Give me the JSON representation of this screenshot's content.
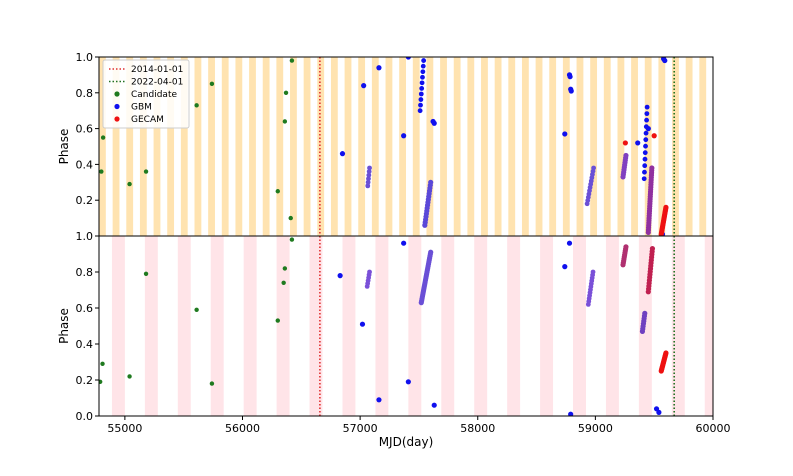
{
  "chart_data": {
    "type": "scatter",
    "xlabel": "MJD(day)",
    "xlim": [
      54780,
      60000
    ],
    "xticks": [
      55000,
      56000,
      57000,
      58000,
      59000,
      60000
    ],
    "xtick_labels": [
      "55000",
      "56000",
      "57000",
      "58000",
      "59000",
      "60000"
    ],
    "colors": {
      "candidate": "#1f7a1f",
      "gbm": "#1010ee",
      "gecam": "#ee1111",
      "mixed": "#7a3ed0",
      "band_top": "#ffe3b0",
      "band_bottom": "#ffe4e8",
      "vline1": "#e03030",
      "vline2": "#207020"
    },
    "legend": [
      {
        "label": "2014-01-01",
        "kind": "vline",
        "color": "#e03030"
      },
      {
        "label": "2022-04-01",
        "kind": "vline",
        "color": "#207020"
      },
      {
        "label": "Candidate",
        "kind": "point",
        "color": "#1f7a1f"
      },
      {
        "label": "GBM",
        "kind": "point",
        "color": "#1010ee"
      },
      {
        "label": "GECAM",
        "kind": "point",
        "color": "#ee1111"
      }
    ],
    "vlines": [
      {
        "label": "2014-01-01",
        "x": 56658,
        "color": "#e03030"
      },
      {
        "label": "2022-04-01",
        "x": 59670,
        "color": "#207020"
      }
    ],
    "panels": [
      {
        "name": "top",
        "ylabel": "Phase",
        "ylim": [
          0,
          1
        ],
        "yticks": [
          0.2,
          0.4,
          0.6,
          0.8,
          1.0
        ],
        "ytick_labels": [
          "0.2",
          "0.4",
          "0.6",
          "0.8",
          "1.0"
        ],
        "band_period": 116,
        "band_width": 58,
        "band_phase": 54780,
        "series": [
          {
            "name": "Candidate",
            "color": "#1f7a1f",
            "size": 2.2,
            "points": [
              [
                54800,
                0.36
              ],
              [
                54815,
                0.55
              ],
              [
                55040,
                0.29
              ],
              [
                55180,
                0.36
              ],
              [
                55610,
                0.73
              ],
              [
                55740,
                0.85
              ],
              [
                56300,
                0.25
              ],
              [
                56360,
                0.64
              ],
              [
                56370,
                0.8
              ],
              [
                56410,
                0.1
              ],
              [
                56420,
                0.98
              ]
            ]
          },
          {
            "name": "GBM",
            "color": "#1010ee",
            "size": 2.6,
            "points": [
              [
                56850,
                0.46
              ],
              [
                57030,
                0.84
              ],
              [
                57160,
                0.94
              ],
              [
                57370,
                0.56
              ],
              [
                57410,
                1.0
              ],
              [
                57620,
                0.64
              ],
              [
                57630,
                0.63
              ],
              [
                58740,
                0.57
              ],
              [
                58780,
                0.9
              ],
              [
                58785,
                0.89
              ],
              [
                58790,
                0.82
              ],
              [
                58795,
                0.81
              ],
              [
                59450,
                0.6
              ],
              [
                59580,
                0.99
              ],
              [
                59590,
                0.98
              ],
              [
                59570,
                0.01
              ],
              [
                59360,
                0.52
              ]
            ]
          },
          {
            "name": "GBM cluster 1",
            "color": "#1010ee",
            "size": 2.4,
            "line": [
              [
                57510,
                0.7
              ],
              [
                57540,
                0.98
              ]
            ],
            "count": 10
          },
          {
            "name": "GBM cluster 2",
            "color": "#5a48d8",
            "size": 2.6,
            "line": [
              [
                57550,
                0.06
              ],
              [
                57600,
                0.3
              ]
            ],
            "count": 16
          },
          {
            "name": "GBM cluster 3",
            "color": "#6a4fd6",
            "size": 2.4,
            "line": [
              [
                57065,
                0.28
              ],
              [
                57080,
                0.38
              ]
            ],
            "count": 6
          },
          {
            "name": "GBM cluster 4",
            "color": "#6a4fd6",
            "size": 2.4,
            "line": [
              [
                58930,
                0.18
              ],
              [
                58985,
                0.38
              ]
            ],
            "count": 12
          },
          {
            "name": "GBM cluster 5",
            "color": "#1010ee",
            "size": 2.4,
            "line": [
              [
                59415,
                0.32
              ],
              [
                59440,
                0.72
              ]
            ],
            "count": 12
          },
          {
            "name": "Mixed cluster 6",
            "color": "#8040c0",
            "size": 2.6,
            "line": [
              [
                59235,
                0.33
              ],
              [
                59260,
                0.45
              ]
            ],
            "count": 10
          },
          {
            "name": "GECAM",
            "color": "#ee1111",
            "size": 2.6,
            "points": [
              [
                59255,
                0.52
              ],
              [
                59500,
                0.56
              ]
            ]
          },
          {
            "name": "Mixed cluster 7",
            "color": "#9030a0",
            "size": 2.6,
            "line": [
              [
                59450,
                0.02
              ],
              [
                59480,
                0.38
              ]
            ],
            "count": 28
          },
          {
            "name": "GECAM cluster",
            "color": "#ee1111",
            "size": 2.6,
            "line": [
              [
                59560,
                0.01
              ],
              [
                59600,
                0.16
              ]
            ],
            "count": 20
          }
        ]
      },
      {
        "name": "bottom",
        "ylabel": "Phase",
        "ylim": [
          0,
          1
        ],
        "yticks": [
          0.0,
          0.2,
          0.4,
          0.6,
          0.8,
          1.0
        ],
        "ytick_labels": [
          "0.0",
          "0.2",
          "0.4",
          "0.6",
          "0.8",
          "1.0"
        ],
        "band_period": 280,
        "band_width": 110,
        "band_phase": 54890,
        "series": [
          {
            "name": "Candidate",
            "color": "#1f7a1f",
            "size": 2.2,
            "points": [
              [
                54790,
                0.19
              ],
              [
                54810,
                0.29
              ],
              [
                55040,
                0.22
              ],
              [
                55180,
                0.79
              ],
              [
                55610,
                0.59
              ],
              [
                55740,
                0.18
              ],
              [
                56300,
                0.53
              ],
              [
                56350,
                0.74
              ],
              [
                56360,
                0.82
              ],
              [
                56420,
                0.98
              ]
            ]
          },
          {
            "name": "GBM",
            "color": "#1010ee",
            "size": 2.6,
            "points": [
              [
                56830,
                0.78
              ],
              [
                57020,
                0.51
              ],
              [
                57160,
                0.09
              ],
              [
                57370,
                0.96
              ],
              [
                57410,
                0.19
              ],
              [
                57630,
                0.06
              ],
              [
                58740,
                0.83
              ],
              [
                58780,
                0.96
              ],
              [
                58790,
                0.01
              ],
              [
                59540,
                0.02
              ],
              [
                59520,
                0.04
              ]
            ]
          },
          {
            "name": "GBM cluster 1",
            "color": "#7a50d8",
            "size": 2.4,
            "line": [
              [
                57060,
                0.72
              ],
              [
                57080,
                0.8
              ]
            ],
            "count": 6
          },
          {
            "name": "GBM cluster 2",
            "color": "#6a4fd6",
            "size": 2.6,
            "line": [
              [
                57520,
                0.63
              ],
              [
                57600,
                0.91
              ]
            ],
            "count": 26
          },
          {
            "name": "GBM cluster 3",
            "color": "#7a50d8",
            "size": 2.4,
            "line": [
              [
                58940,
                0.62
              ],
              [
                58980,
                0.8
              ]
            ],
            "count": 12
          },
          {
            "name": "Mixed cluster 4",
            "color": "#b03070",
            "size": 2.6,
            "line": [
              [
                59235,
                0.84
              ],
              [
                59260,
                0.94
              ]
            ],
            "count": 10
          },
          {
            "name": "Mixed cluster 5",
            "color": "#7040c0",
            "size": 2.6,
            "line": [
              [
                59400,
                0.47
              ],
              [
                59420,
                0.57
              ]
            ],
            "count": 8
          },
          {
            "name": "Mixed cluster 6",
            "color": "#c02050",
            "size": 2.6,
            "line": [
              [
                59450,
                0.69
              ],
              [
                59485,
                0.93
              ]
            ],
            "count": 16
          },
          {
            "name": "GECAM cluster",
            "color": "#ee1111",
            "size": 2.6,
            "line": [
              [
                59560,
                0.25
              ],
              [
                59600,
                0.35
              ]
            ],
            "count": 16
          }
        ]
      }
    ]
  }
}
